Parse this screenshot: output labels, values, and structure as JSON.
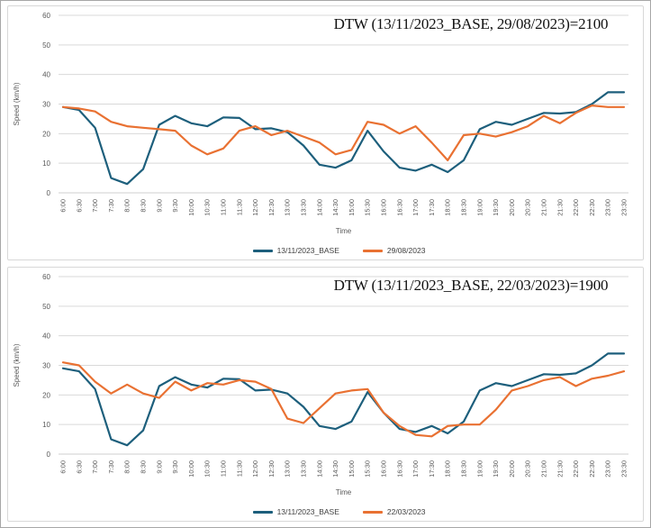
{
  "page": {
    "background": "#ffffff",
    "text_color": "#595959",
    "gridline_color": "#d9d9d9",
    "axis_line_color": "#cfcfcf",
    "accent_blue": "#1D5F7C",
    "accent_orange": "#E97132"
  },
  "chart_data": [
    {
      "type": "line",
      "title": "DTW (13/11/2023_BASE, 29/08/2023)=2100",
      "xlabel": "Time",
      "ylabel": "Speed (km/h)",
      "ylim": [
        0,
        60
      ],
      "ytick_step": 10,
      "grid": "horizontal",
      "legend_position": "bottom",
      "categories": [
        "6:00",
        "6:30",
        "7:00",
        "7:30",
        "8:00",
        "8:30",
        "9:00",
        "9:30",
        "10:00",
        "10:30",
        "11:00",
        "11:30",
        "12:00",
        "12:30",
        "13:00",
        "13:30",
        "14:00",
        "14:30",
        "15:00",
        "15:30",
        "16:00",
        "16:30",
        "17:00",
        "17:30",
        "18:00",
        "18:30",
        "19:00",
        "19:30",
        "20:00",
        "20:30",
        "21:00",
        "21:30",
        "22:00",
        "22:30",
        "23:00",
        "23:30"
      ],
      "series": [
        {
          "name": "13/11/2023_BASE",
          "color": "#1D5F7C",
          "values": [
            29,
            28,
            22,
            5,
            3,
            8,
            23,
            26,
            23.5,
            22.5,
            25.5,
            25.3,
            21.5,
            21.8,
            20.5,
            16,
            9.5,
            8.5,
            11,
            21,
            14,
            8.5,
            7.5,
            9.5,
            7,
            11,
            21.5,
            24,
            23,
            25,
            27,
            26.8,
            27.3,
            30,
            34,
            34
          ]
        },
        {
          "name": "29/08/2023",
          "color": "#E97132",
          "values": [
            29,
            28.5,
            27.5,
            24,
            22.5,
            22,
            21.5,
            21,
            16,
            13,
            15,
            21,
            22.5,
            19.5,
            21,
            19,
            17,
            13,
            14.5,
            24,
            23,
            20,
            22.5,
            17,
            11,
            19.5,
            20,
            19,
            20.5,
            22.5,
            26,
            23.5,
            27,
            29.5,
            29,
            29
          ]
        }
      ]
    },
    {
      "type": "line",
      "title": "DTW (13/11/2023_BASE, 22/03/2023)=1900",
      "xlabel": "Time",
      "ylabel": "Speed (km/h)",
      "ylim": [
        0,
        60
      ],
      "ytick_step": 10,
      "grid": "horizontal",
      "legend_position": "bottom",
      "categories": [
        "6:00",
        "6:30",
        "7:00",
        "7:30",
        "8:00",
        "8:30",
        "9:00",
        "9:30",
        "10:00",
        "10:30",
        "11:00",
        "11:30",
        "12:00",
        "12:30",
        "13:00",
        "13:30",
        "14:00",
        "14:30",
        "15:00",
        "15:30",
        "16:00",
        "16:30",
        "17:00",
        "17:30",
        "18:00",
        "18:30",
        "19:00",
        "19:30",
        "20:00",
        "20:30",
        "21:00",
        "21:30",
        "22:00",
        "22:30",
        "23:00",
        "23:30"
      ],
      "series": [
        {
          "name": "13/11/2023_BASE",
          "color": "#1D5F7C",
          "values": [
            29,
            28,
            22,
            5,
            3,
            8,
            23,
            26,
            23.5,
            22.5,
            25.5,
            25.3,
            21.5,
            21.8,
            20.5,
            16,
            9.5,
            8.5,
            11,
            21,
            14,
            8.5,
            7.5,
            9.5,
            7,
            11,
            21.5,
            24,
            23,
            25,
            27,
            26.8,
            27.3,
            30,
            34,
            34
          ]
        },
        {
          "name": "22/03/2023",
          "color": "#E97132",
          "values": [
            31,
            30,
            24.5,
            20.5,
            23.5,
            20.5,
            19,
            24.5,
            21.5,
            24,
            23.5,
            25,
            24.5,
            22,
            12,
            10.5,
            15.5,
            20.5,
            21.5,
            22,
            14,
            9.5,
            6.5,
            6,
            9.5,
            10,
            10,
            15,
            21.5,
            23,
            25,
            26,
            23,
            25.5,
            26.5,
            28
          ]
        }
      ]
    }
  ]
}
